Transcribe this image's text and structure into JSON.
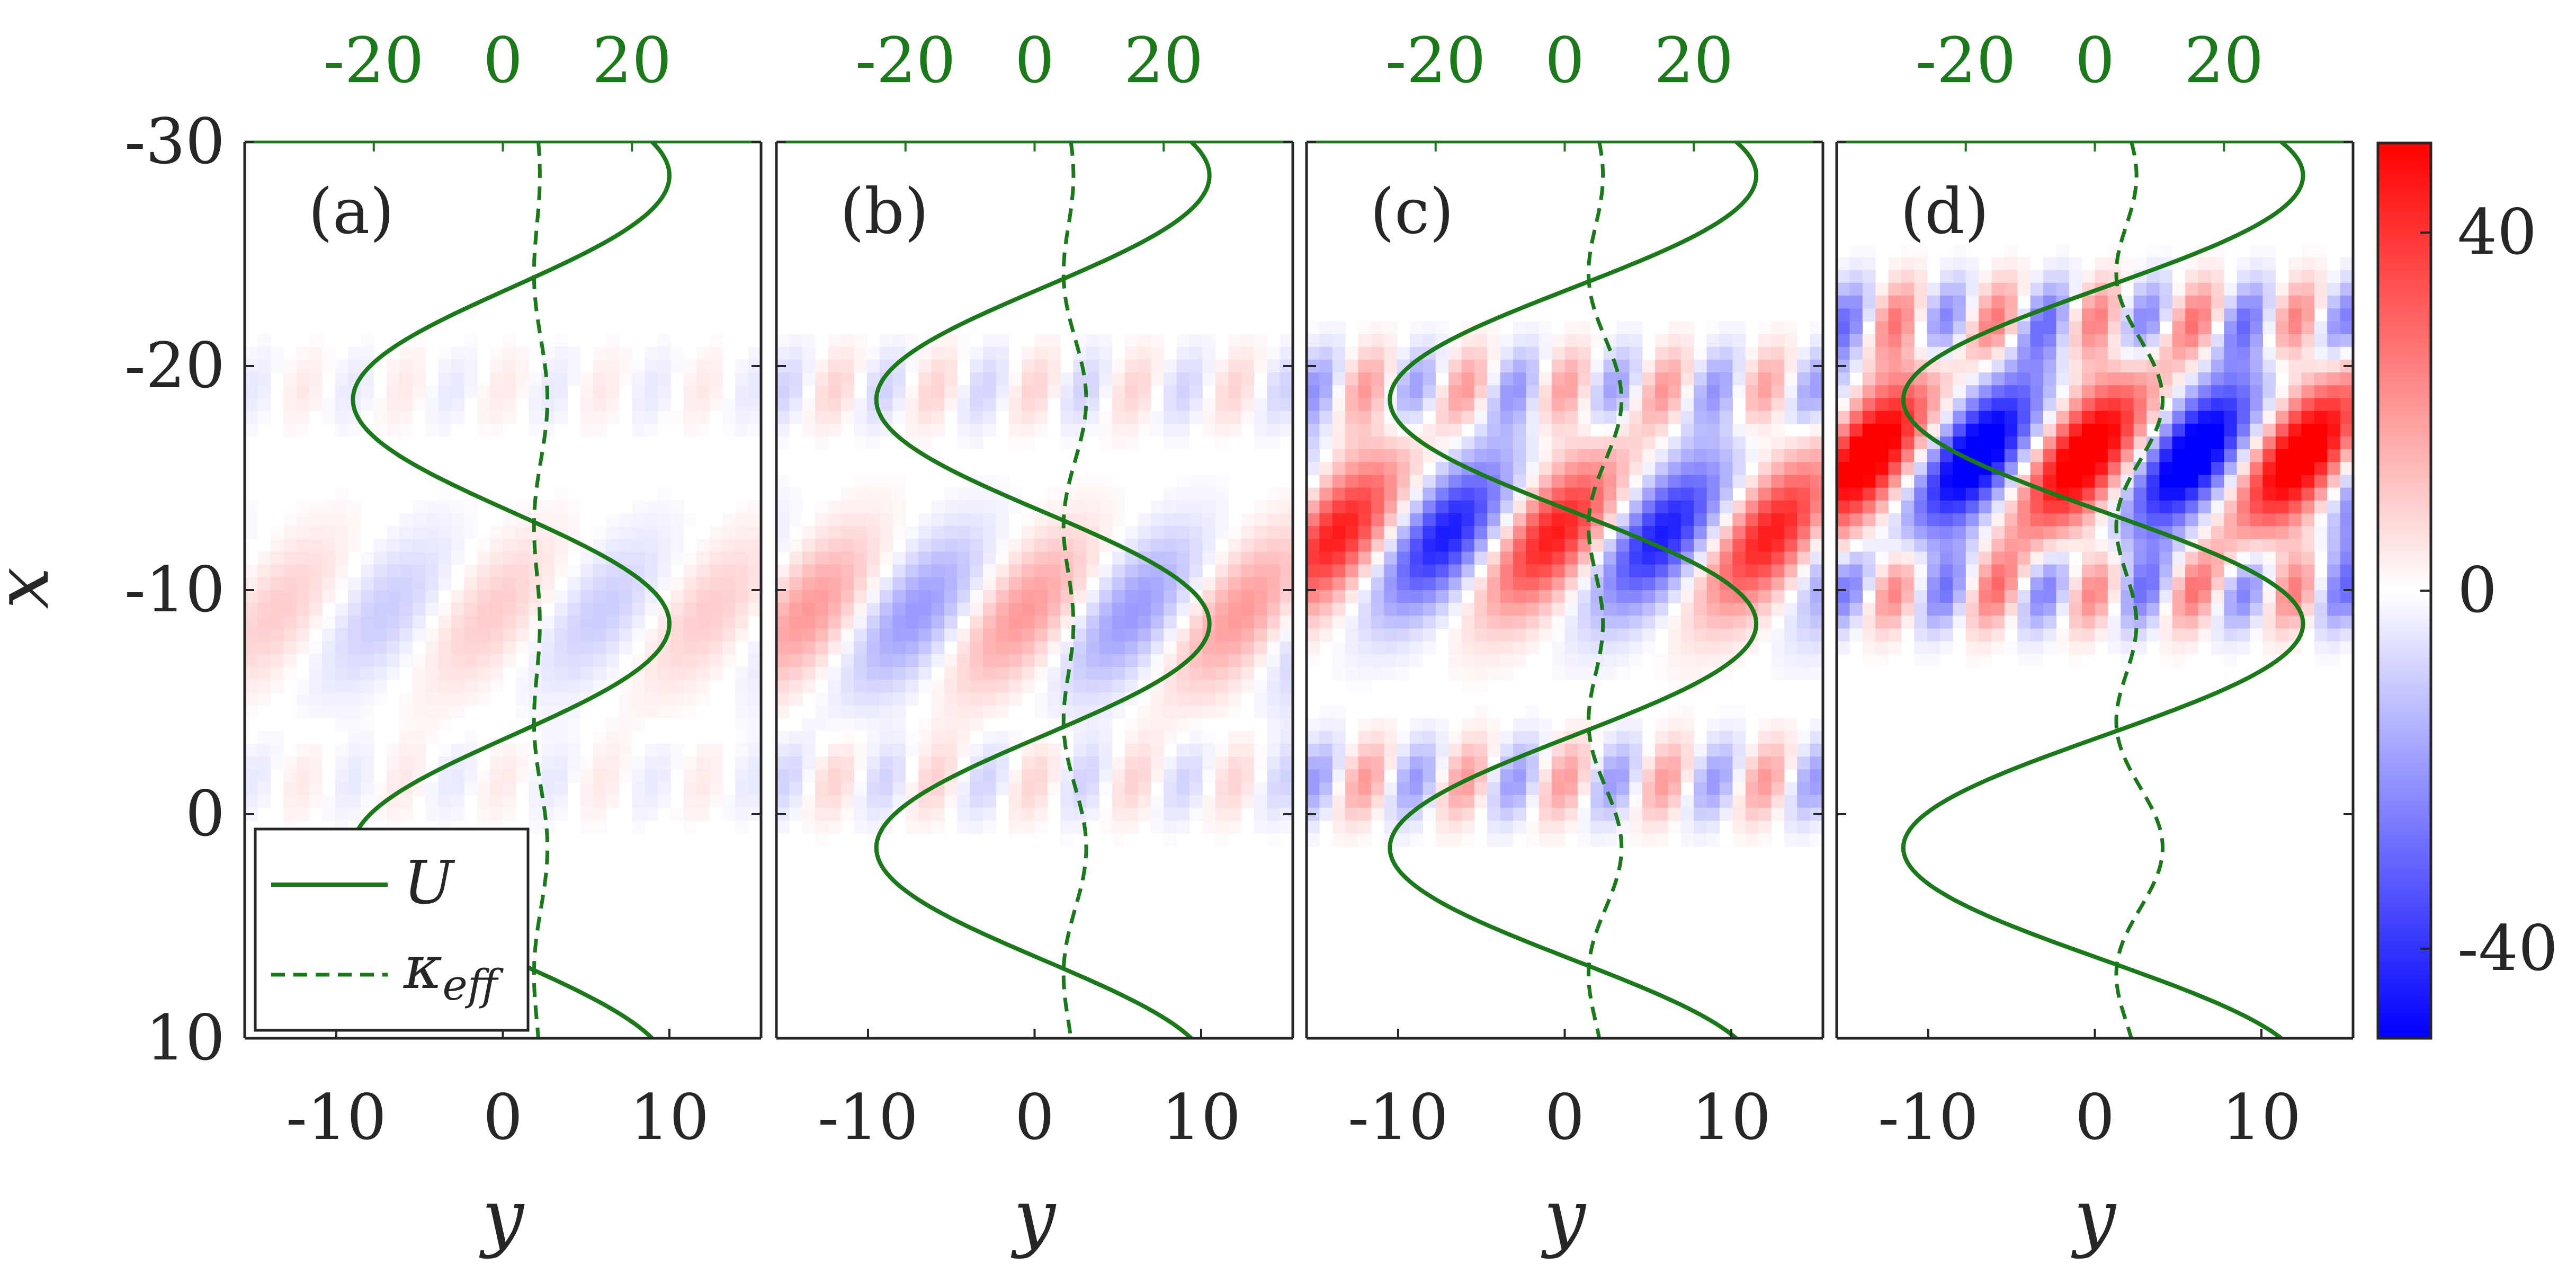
{
  "chart_data": {
    "type": "heatmap",
    "x_axis": {
      "label": "y",
      "ticks": [
        "-10",
        "0",
        "10"
      ],
      "range": [
        -15.5,
        15.5
      ]
    },
    "y_axis": {
      "label": "x",
      "ticks": [
        "-30",
        "-20",
        "-10",
        "0",
        "10"
      ],
      "range": [
        -30,
        10
      ],
      "reversed": true
    },
    "top_axis": {
      "ticks": [
        "-20",
        "0",
        "20"
      ],
      "range": [
        -40,
        40
      ],
      "color": "#1a7a1a"
    },
    "colorbar": {
      "ticks": [
        "40",
        "0",
        "-40"
      ],
      "range": [
        -50,
        50
      ],
      "colors": [
        "#0000ff",
        "#ffffff",
        "#ff0000"
      ]
    },
    "legend": [
      {
        "name": "U",
        "style": "solid",
        "color": "#1a7a1a"
      },
      {
        "name": "κ",
        "subscript": "eff",
        "style": "dashed",
        "color": "#1a7a1a"
      }
    ],
    "panels": [
      {
        "label": "(a)",
        "U": {
          "amplitude": 9.5,
          "offset": 0.5,
          "wavelength": 20,
          "phase_x": -8.5
        },
        "kappa": {
          "mean": 5.6,
          "amplitude": 1.3,
          "wavelength": 20,
          "phase_x": -8.5
        },
        "field": {
          "peak": 10,
          "band_x": [
            -19,
            -9,
            -1.5
          ]
        }
      },
      {
        "label": "(b)",
        "U": {
          "amplitude": 10,
          "offset": 0.5,
          "wavelength": 20,
          "phase_x": -8.5
        },
        "kappa": {
          "mean": 5.8,
          "amplitude": 2.2,
          "wavelength": 20,
          "phase_x": -8.5
        },
        "field": {
          "peak": 20,
          "band_x": [
            -19,
            -9,
            -1.5
          ]
        }
      },
      {
        "label": "(c)",
        "U": {
          "amplitude": 11,
          "offset": 0.5,
          "wavelength": 20,
          "phase_x": -8.5
        },
        "kappa": {
          "mean": 5.6,
          "amplitude": 3.2,
          "wavelength": 20,
          "phase_x": -8.5
        },
        "field": {
          "peak": 45,
          "band_x": [
            -19,
            -12.5,
            -1.5
          ]
        }
      },
      {
        "label": "(d)",
        "U": {
          "amplitude": 12,
          "offset": 0.5,
          "wavelength": 20,
          "phase_x": -8.5
        },
        "kappa": {
          "mean": 6,
          "amplitude": 4.5,
          "wavelength": 20,
          "phase_x": -8.5
        },
        "field": {
          "peak": 60,
          "band_x": [
            -22,
            -16,
            -10
          ]
        }
      }
    ]
  },
  "axes_labels": {
    "x_label": "y",
    "y_label": "x"
  }
}
